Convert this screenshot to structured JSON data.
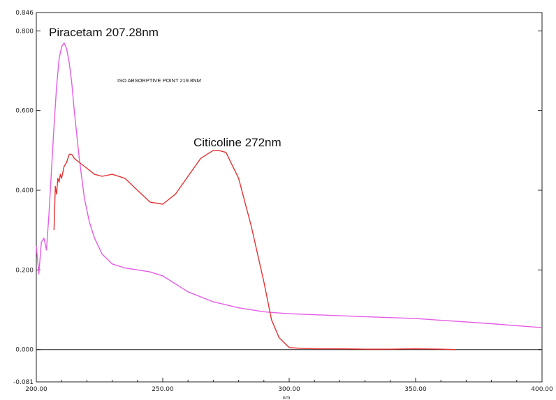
{
  "chart_data": {
    "type": "line",
    "title": "",
    "xlabel": "nm",
    "ylabel": "",
    "xlim": [
      200,
      400
    ],
    "ylim": [
      -0.081,
      0.846
    ],
    "x_ticks": [
      "200.00",
      "250.00",
      "300.00",
      "350.00",
      "400.00"
    ],
    "y_ticks": [
      "-0.081",
      "0.000",
      "0.200",
      "0.400",
      "0.600",
      "0.800",
      "0.846"
    ],
    "grid": false,
    "annotations": {
      "piracetam": "Piracetam 207.28nm",
      "citicoline": "Citicoline 272nm",
      "iso": "ISO ABSORPTIVE POINT 219.8NM"
    },
    "colors": {
      "piracetam": "#e65ce6",
      "citicoline": "#e63232",
      "axis": "#222222"
    },
    "series": [
      {
        "key": "piracetam",
        "color": "#e65ce6",
        "x": [
          200,
          201,
          202,
          203,
          204,
          205,
          206,
          207,
          208,
          209,
          210,
          211,
          212,
          213,
          214,
          215,
          217,
          219,
          221,
          223,
          226,
          230,
          235,
          240,
          245,
          250,
          255,
          260,
          270,
          280,
          290,
          300,
          320,
          350,
          380,
          400
        ],
        "y": [
          0.26,
          0.19,
          0.27,
          0.28,
          0.25,
          0.34,
          0.45,
          0.56,
          0.66,
          0.73,
          0.76,
          0.77,
          0.755,
          0.72,
          0.67,
          0.6,
          0.48,
          0.38,
          0.32,
          0.28,
          0.24,
          0.215,
          0.205,
          0.2,
          0.195,
          0.185,
          0.165,
          0.145,
          0.12,
          0.105,
          0.095,
          0.09,
          0.085,
          0.078,
          0.065,
          0.055
        ]
      },
      {
        "key": "citicoline",
        "color": "#e63232",
        "x": [
          207,
          207.5,
          208,
          208.5,
          209,
          209.5,
          210,
          211,
          212,
          213,
          214,
          215,
          217,
          220,
          223,
          226,
          230,
          235,
          240,
          245,
          250,
          255,
          260,
          265,
          270,
          272,
          275,
          280,
          285,
          290,
          293,
          296,
          300,
          305,
          310,
          320,
          330,
          340,
          350,
          360,
          366
        ],
        "y": [
          0.3,
          0.41,
          0.39,
          0.43,
          0.42,
          0.44,
          0.43,
          0.46,
          0.47,
          0.49,
          0.49,
          0.48,
          0.47,
          0.455,
          0.44,
          0.435,
          0.44,
          0.43,
          0.4,
          0.37,
          0.365,
          0.39,
          0.435,
          0.48,
          0.5,
          0.5,
          0.495,
          0.43,
          0.31,
          0.17,
          0.075,
          0.03,
          0.005,
          0.003,
          0.002,
          0.002,
          0.001,
          0.001,
          0.002,
          0.001,
          0.0
        ]
      }
    ]
  }
}
